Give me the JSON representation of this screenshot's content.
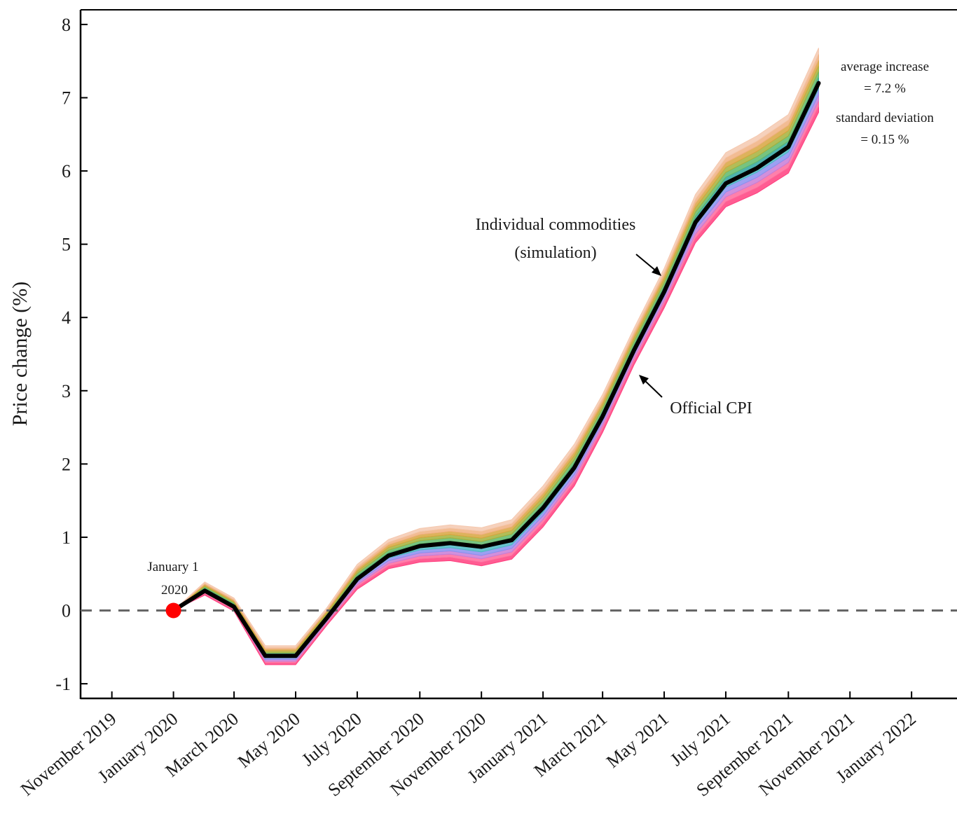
{
  "chart_data": {
    "type": "line",
    "ylabel": "Price change (%)",
    "xlabel": "",
    "ylim": [
      -1.2,
      8.2
    ],
    "yticks": [
      "8",
      "7",
      "6",
      "5",
      "4",
      "3",
      "2",
      "1",
      "0",
      "-1"
    ],
    "ytick_values": [
      8,
      7,
      6,
      5,
      4,
      3,
      2,
      1,
      0,
      -1
    ],
    "xticks": [
      "November 2019",
      "January 2020",
      "March 2020",
      "May 2020",
      "July 2020",
      "September 2020",
      "November 2020",
      "January 2021",
      "March 2021",
      "May 2021",
      "July 2021",
      "September 2021",
      "November 2021",
      "January 2022"
    ],
    "xtick_dates": [
      "2019-11-01",
      "2020-01-01",
      "2020-03-01",
      "2020-05-01",
      "2020-07-01",
      "2020-09-01",
      "2020-11-01",
      "2021-01-01",
      "2021-03-01",
      "2021-05-01",
      "2021-07-01",
      "2021-09-01",
      "2021-11-01",
      "2022-01-01"
    ],
    "xlim": [
      "2019-10-01",
      "2022-02-15"
    ],
    "x": [
      "2020-01-01",
      "2020-02-01",
      "2020-03-01",
      "2020-04-01",
      "2020-05-01",
      "2020-06-01",
      "2020-07-01",
      "2020-08-01",
      "2020-09-01",
      "2020-10-01",
      "2020-11-01",
      "2020-12-01",
      "2021-01-01",
      "2021-02-01",
      "2021-03-01",
      "2021-04-01",
      "2021-05-01",
      "2021-06-01",
      "2021-07-01",
      "2021-08-01",
      "2021-09-01",
      "2021-10-01"
    ],
    "series": [
      {
        "name": "Official CPI",
        "color": "#000000",
        "values": [
          0.0,
          0.27,
          0.05,
          -0.62,
          -0.62,
          -0.1,
          0.43,
          0.75,
          0.88,
          0.92,
          0.87,
          0.96,
          1.4,
          1.95,
          2.65,
          3.55,
          4.35,
          5.3,
          5.83,
          6.04,
          6.33,
          7.2
        ]
      }
    ],
    "band_colors": [
      "#ff3f7f",
      "#ff6a9c",
      "#c97dd6",
      "#8b8ff0",
      "#4cb8c4",
      "#2ea3a0",
      "#5fb86a",
      "#a4b13b",
      "#d7a63f",
      "#f0b080",
      "#f5c9b0"
    ],
    "band_low_offsets": [
      0.0,
      -0.06,
      -0.06,
      -0.12,
      -0.12,
      -0.1,
      -0.14,
      -0.18,
      -0.22,
      -0.24,
      -0.26,
      -0.26,
      -0.26,
      -0.25,
      -0.22,
      -0.2,
      -0.22,
      -0.28,
      -0.32,
      -0.34,
      -0.36,
      -0.4
    ],
    "band_high_offsets": [
      0.0,
      0.12,
      0.12,
      0.14,
      0.14,
      0.14,
      0.2,
      0.22,
      0.24,
      0.25,
      0.26,
      0.28,
      0.3,
      0.32,
      0.3,
      0.3,
      0.32,
      0.38,
      0.42,
      0.44,
      0.44,
      0.48
    ],
    "reference_line": {
      "y": 0,
      "color": "#666666",
      "style": "dashed"
    },
    "start_marker": {
      "x": "2020-01-01",
      "y": 0,
      "color": "#ff0000"
    },
    "grid": false,
    "annotations": {
      "start_line1": "January 1",
      "start_line2": "2020",
      "individual_line1": "Individual commodities",
      "individual_line2": "(simulation)",
      "official": "Official CPI",
      "avg_label": "average increase",
      "avg_value": "=  7.2 %",
      "sd_label": "standard deviation",
      "sd_value": "=  0.15 %"
    }
  }
}
